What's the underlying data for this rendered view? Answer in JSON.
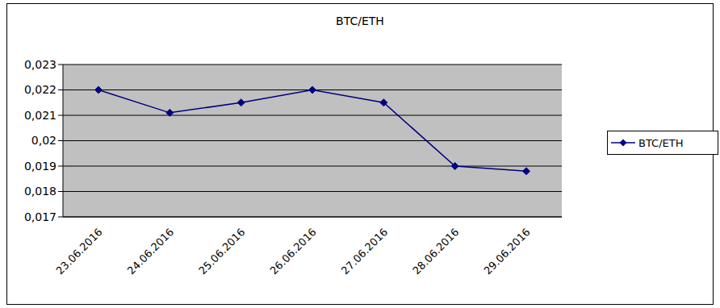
{
  "chart_data": {
    "type": "line",
    "title": "BTC/ETH",
    "categories": [
      "23.06.2016",
      "24.06.2016",
      "25.06.2016",
      "26.06.2016",
      "27.06.2016",
      "28.06.2016",
      "29.06.2016"
    ],
    "series": [
      {
        "name": "BTC/ETH",
        "color": "#000080",
        "marker": "diamond",
        "values": [
          0.022,
          0.0211,
          0.0215,
          0.022,
          0.0215,
          0.019,
          0.0188
        ]
      }
    ],
    "ylim": [
      0.017,
      0.023
    ],
    "yticks": [
      {
        "value": 0.017,
        "label": "0,017"
      },
      {
        "value": 0.018,
        "label": "0,018"
      },
      {
        "value": 0.019,
        "label": "0,019"
      },
      {
        "value": 0.02,
        "label": "0,02"
      },
      {
        "value": 0.021,
        "label": "0,021"
      },
      {
        "value": 0.022,
        "label": "0,022"
      },
      {
        "value": 0.023,
        "label": "0,023"
      }
    ],
    "grid": true,
    "legend": "right"
  }
}
